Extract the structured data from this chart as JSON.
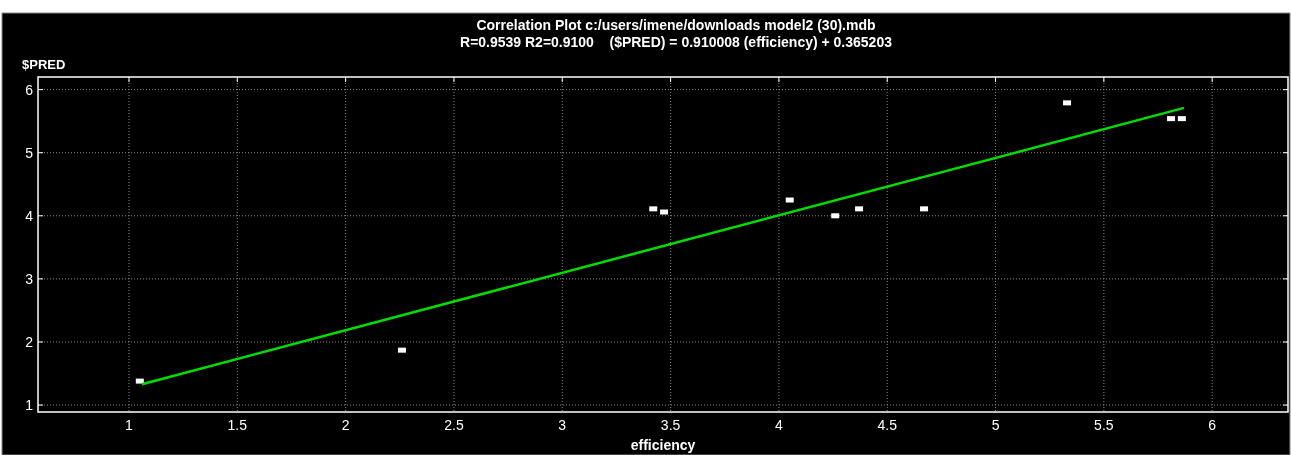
{
  "chart_data": {
    "type": "scatter",
    "title": "Correlation Plot c:/users/imene/downloads model2 (30).mdb",
    "subtitle": "R=0.9539 R2=0.9100    ($PRED) = 0.910008 (efficiency) + 0.365203",
    "xlabel": "efficiency",
    "ylabel": "$PRED",
    "xlim": [
      0.58,
      6.35
    ],
    "ylim": [
      0.89,
      6.2
    ],
    "xticks": [
      1,
      1.5,
      2,
      2.5,
      3,
      3.5,
      4,
      4.5,
      5,
      5.5,
      6
    ],
    "yticks": [
      1,
      2,
      3,
      4,
      5,
      6
    ],
    "grid": true,
    "marker": "square",
    "series": [
      {
        "color": "#ffffff",
        "x": [
          1.05,
          2.26,
          3.42,
          3.47,
          4.05,
          4.26,
          4.37,
          4.67,
          5.33,
          5.81,
          5.86
        ],
        "values": [
          1.38,
          1.87,
          4.11,
          4.06,
          4.25,
          4.0,
          4.11,
          4.11,
          5.79,
          5.54,
          5.54
        ]
      },
      {
        "type": "line",
        "color": "#00dd00",
        "x": [
          1.06,
          5.87
        ],
        "values": [
          1.33,
          5.71
        ],
        "marker": "none"
      }
    ]
  }
}
